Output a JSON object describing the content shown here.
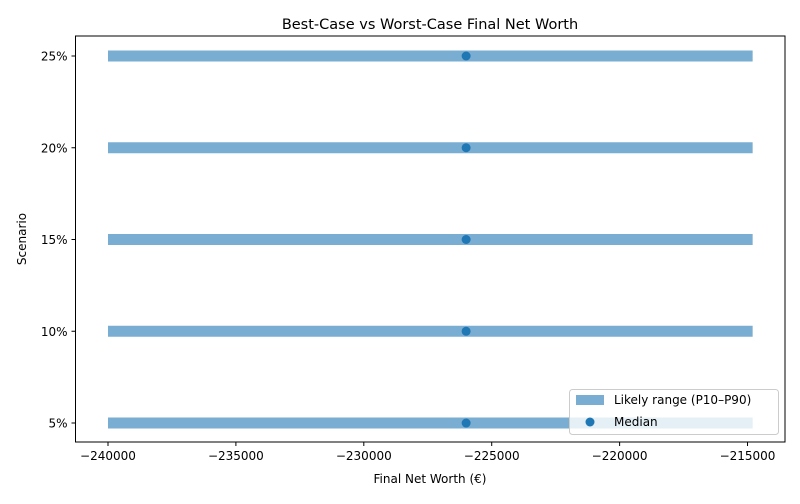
{
  "chart_data": {
    "type": "range",
    "title": "Best-Case vs Worst-Case Final Net Worth",
    "xlabel": "Final Net Worth (€)",
    "ylabel": "Scenario",
    "categories": [
      "5%",
      "10%",
      "15%",
      "20%",
      "25%"
    ],
    "series": [
      {
        "name": "Likely range (P10–P90)",
        "p10": [
          -240000,
          -240000,
          -240000,
          -240000,
          -240000
        ],
        "p90": [
          -214800,
          -214800,
          -214800,
          -214800,
          -214800
        ],
        "color": "#79add2"
      },
      {
        "name": "Median",
        "values": [
          -226000,
          -226000,
          -226000,
          -226000,
          -226000
        ],
        "color": "#1f77b4"
      }
    ],
    "xlim": [
      -241270,
      -213535
    ],
    "xticks": [
      -240000,
      -235000,
      -230000,
      -225000,
      -220000,
      -215000
    ],
    "xtick_labels": [
      "−240000",
      "−235000",
      "−230000",
      "−225000",
      "−220000",
      "−215000"
    ],
    "grid": false,
    "legend_position": "lower-right"
  }
}
